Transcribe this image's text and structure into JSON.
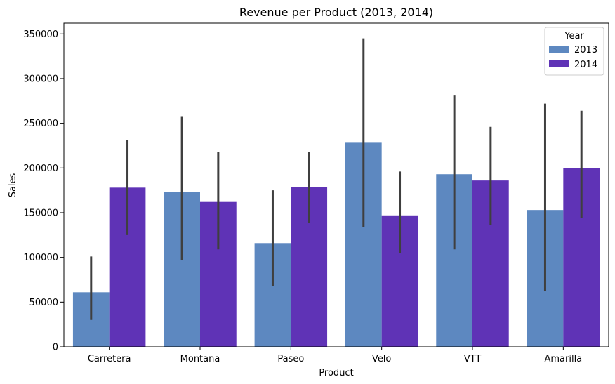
{
  "chart_data": {
    "type": "bar",
    "title": "Revenue per Product (2013, 2014)",
    "xlabel": "Product",
    "ylabel": "Sales",
    "categories": [
      " Carretera ",
      " Montana ",
      " Paseo ",
      " Velo ",
      " VTT ",
      " Amarilla "
    ],
    "ylim": [
      0,
      362000
    ],
    "yticks": [
      0,
      50000,
      100000,
      150000,
      200000,
      250000,
      300000,
      350000
    ],
    "series": [
      {
        "name": "2013",
        "color": "#5d88c0",
        "values": [
          61000,
          173000,
          116000,
          229000,
          193000,
          153000
        ],
        "error_low": [
          30000,
          97000,
          68000,
          134000,
          109000,
          62000
        ],
        "error_high": [
          101000,
          258000,
          175000,
          345000,
          281000,
          272000
        ]
      },
      {
        "name": "2014",
        "color": "#5f33b6",
        "values": [
          178000,
          162000,
          179000,
          147000,
          186000,
          200000
        ],
        "error_low": [
          125000,
          109000,
          139000,
          105000,
          136000,
          144000
        ],
        "error_high": [
          231000,
          218000,
          218000,
          196000,
          246000,
          264000
        ]
      }
    ],
    "legend": {
      "title": "Year",
      "placement": "top-right"
    },
    "error_bar_color": "#3f3f3f",
    "grid": false
  }
}
